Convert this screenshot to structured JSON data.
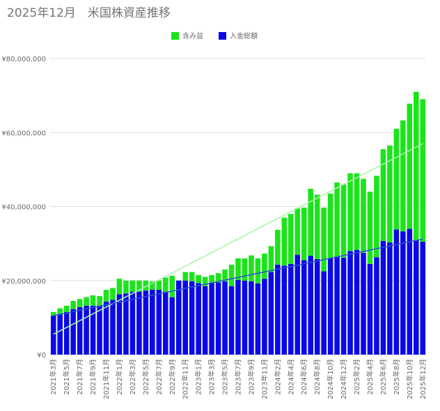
{
  "chart_data": {
    "type": "bar",
    "stacked": true,
    "title": "2025年12月　米国株資産推移",
    "categories": [
      "2021年3月",
      null,
      "2021年5月",
      null,
      "2021年7月",
      null,
      "2021年9月",
      null,
      "2021年11月",
      null,
      "2022年1月",
      null,
      "2022年3月",
      null,
      "2022年5月",
      null,
      "2022年7月",
      null,
      "2022年9月",
      null,
      "2022年11月",
      null,
      "2023年1月",
      null,
      "2023年3月",
      null,
      "2023年5月",
      null,
      "2023年7月",
      null,
      "2023年9月",
      null,
      "2023年11月",
      null,
      "2024年2月",
      null,
      "2024年4月",
      null,
      "2024年6月",
      null,
      "2024年8月",
      null,
      "2024年10月",
      null,
      "2024年12月",
      null,
      "2025年2月",
      null,
      "2025年4月",
      null,
      "2025年6月",
      null,
      "2025年8月",
      null,
      "2025年10月",
      null,
      "2025年12月"
    ],
    "series": [
      {
        "name": "含み益",
        "color": "#1be41b",
        "values": [
          1000000,
          1500000,
          1700000,
          2200000,
          2200000,
          2300000,
          2800000,
          2600000,
          3200000,
          3200000,
          4200000,
          3500000,
          3000000,
          3000000,
          2700000,
          2300000,
          2500000,
          3800000,
          5800000,
          0,
          2300000,
          2500000,
          2200000,
          2500000,
          2200000,
          2500000,
          3200000,
          5800000,
          5800000,
          6000000,
          7000000,
          6800000,
          6800000,
          7000000,
          9400000,
          13000000,
          13500000,
          12500000,
          14200000,
          18100000,
          17400000,
          17200000,
          17500000,
          20000000,
          19800000,
          21000000,
          20700000,
          20000000,
          19500000,
          22000000,
          24800000,
          26200000,
          27200000,
          30000000,
          33800000,
          40000000,
          38500000
        ]
      },
      {
        "name": "入金総額",
        "color": "#0a0ae6",
        "values": [
          10500000,
          11000000,
          11500000,
          12300000,
          12800000,
          13200000,
          13200000,
          13200000,
          14300000,
          14800000,
          16300000,
          16500000,
          17000000,
          17000000,
          17300000,
          17500000,
          17500000,
          17000000,
          15500000,
          20000000,
          20000000,
          19800000,
          19300000,
          18500000,
          19300000,
          19500000,
          19800000,
          18500000,
          20200000,
          20000000,
          19800000,
          19200000,
          20500000,
          22300000,
          24300000,
          24000000,
          24500000,
          27000000,
          25500000,
          26700000,
          25800000,
          22500000,
          26000000,
          26500000,
          26200000,
          28000000,
          28300000,
          27500000,
          24500000,
          26300000,
          30700000,
          30300000,
          33800000,
          33300000,
          34000000,
          31000000,
          30500000
        ]
      }
    ],
    "trendlines": [
      {
        "color": "#a6f5a6",
        "values": [
          5500000,
          57000000
        ]
      },
      {
        "color": "#2f4fd6",
        "values": [
          10500000,
          31200000
        ]
      }
    ],
    "ylim": [
      0,
      80000000
    ],
    "yticks": [
      {
        "value": 0,
        "label": "¥0"
      },
      {
        "value": 20000000,
        "label": "¥20,000,000"
      },
      {
        "value": 40000000,
        "label": "¥40,000,000"
      },
      {
        "value": 60000000,
        "label": "¥60,000,000"
      },
      {
        "value": 80000000,
        "label": "¥80,000,000"
      }
    ],
    "grid": true,
    "legend": "top"
  }
}
